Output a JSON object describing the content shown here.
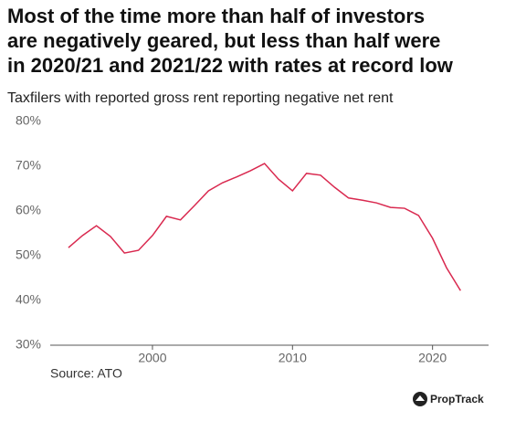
{
  "chart_data": {
    "type": "line",
    "title_lines": [
      "Most of the time more than half of investors",
      "are negatively geared, but less than half were",
      "in 2020/21 and 2021/22 with rates at record low"
    ],
    "subtitle": "Taxfilers with reported gross rent reporting negative net rent",
    "source": "Source: ATO",
    "brand": "PropTrack",
    "x": [
      1994,
      1995,
      1996,
      1997,
      1998,
      1999,
      2000,
      2001,
      2002,
      2003,
      2004,
      2005,
      2006,
      2007,
      2008,
      2009,
      2010,
      2011,
      2012,
      2013,
      2014,
      2015,
      2016,
      2017,
      2018,
      2019,
      2020,
      2021,
      2022
    ],
    "series": [
      {
        "color": "#d9294f",
        "values": [
          51.8,
          54.5,
          56.7,
          54.3,
          50.6,
          51.2,
          54.5,
          58.8,
          58.0,
          61.2,
          64.5,
          66.3,
          67.6,
          69.0,
          70.6,
          67.1,
          64.5,
          68.4,
          68.0,
          65.3,
          62.9,
          62.4,
          61.8,
          60.8,
          60.6,
          59.0,
          53.9,
          47.3,
          42.2
        ]
      }
    ],
    "xlim": [
      1992.7,
      2024.0
    ],
    "xticks": [
      2000,
      2010,
      2020
    ],
    "ylim": [
      30,
      80
    ],
    "yticks": [
      {
        "value": 30,
        "label": "30%"
      },
      {
        "value": 40,
        "label": "40%"
      },
      {
        "value": 50,
        "label": "50%"
      },
      {
        "value": 60,
        "label": "60%"
      },
      {
        "value": 70,
        "label": "70%"
      },
      {
        "value": 80,
        "label": "80%"
      }
    ],
    "grid": false
  }
}
